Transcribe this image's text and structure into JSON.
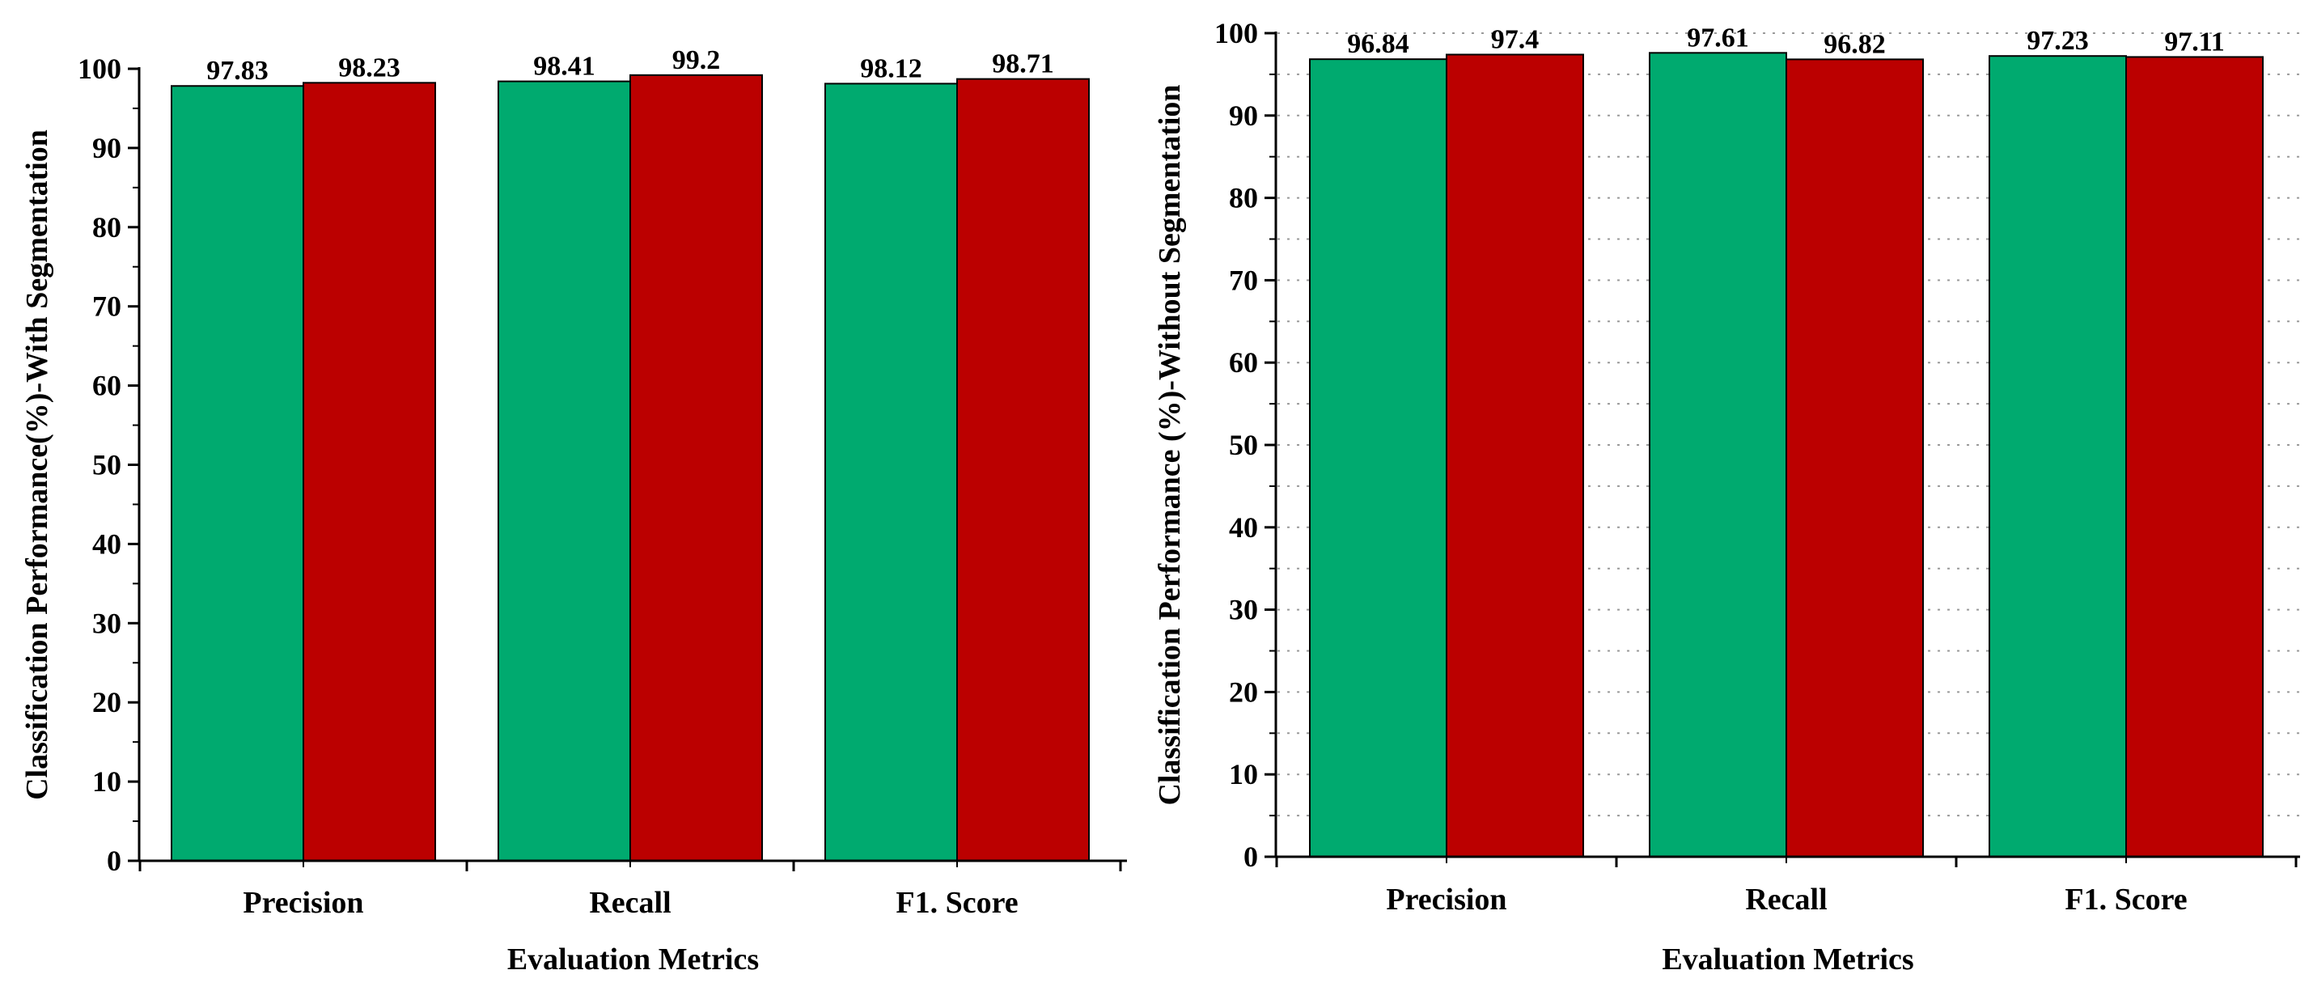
{
  "colors": {
    "series_a": "#00aa6f",
    "series_b": "#bb0000",
    "axis": "#000000",
    "grid": "#9a9a9a"
  },
  "chart_data": [
    {
      "type": "bar",
      "categories": [
        "Precision",
        "Recall",
        "F1. Score"
      ],
      "series": [
        {
          "name": "green",
          "values": [
            97.83,
            98.41,
            98.12
          ]
        },
        {
          "name": "red",
          "values": [
            98.23,
            99.2,
            98.71
          ]
        }
      ],
      "xlabel": "Evaluation Metrics",
      "ylabel": "Classification Performance(%)-With Segmentation",
      "ylim": [
        0,
        100
      ],
      "yticks": [
        0,
        10,
        20,
        30,
        40,
        50,
        60,
        70,
        80,
        90,
        100
      ],
      "grid": false
    },
    {
      "type": "bar",
      "categories": [
        "Precision",
        "Recall",
        "F1. Score"
      ],
      "series": [
        {
          "name": "green",
          "values": [
            96.84,
            97.61,
            97.23
          ]
        },
        {
          "name": "red",
          "values": [
            97.4,
            96.82,
            97.11
          ]
        }
      ],
      "xlabel": "Evaluation Metrics",
      "ylabel": "Classification Performance (%)-Without Segmentation",
      "ylim": [
        0,
        100
      ],
      "yticks": [
        0,
        10,
        20,
        30,
        40,
        50,
        60,
        70,
        80,
        90,
        100
      ],
      "grid": true
    }
  ]
}
